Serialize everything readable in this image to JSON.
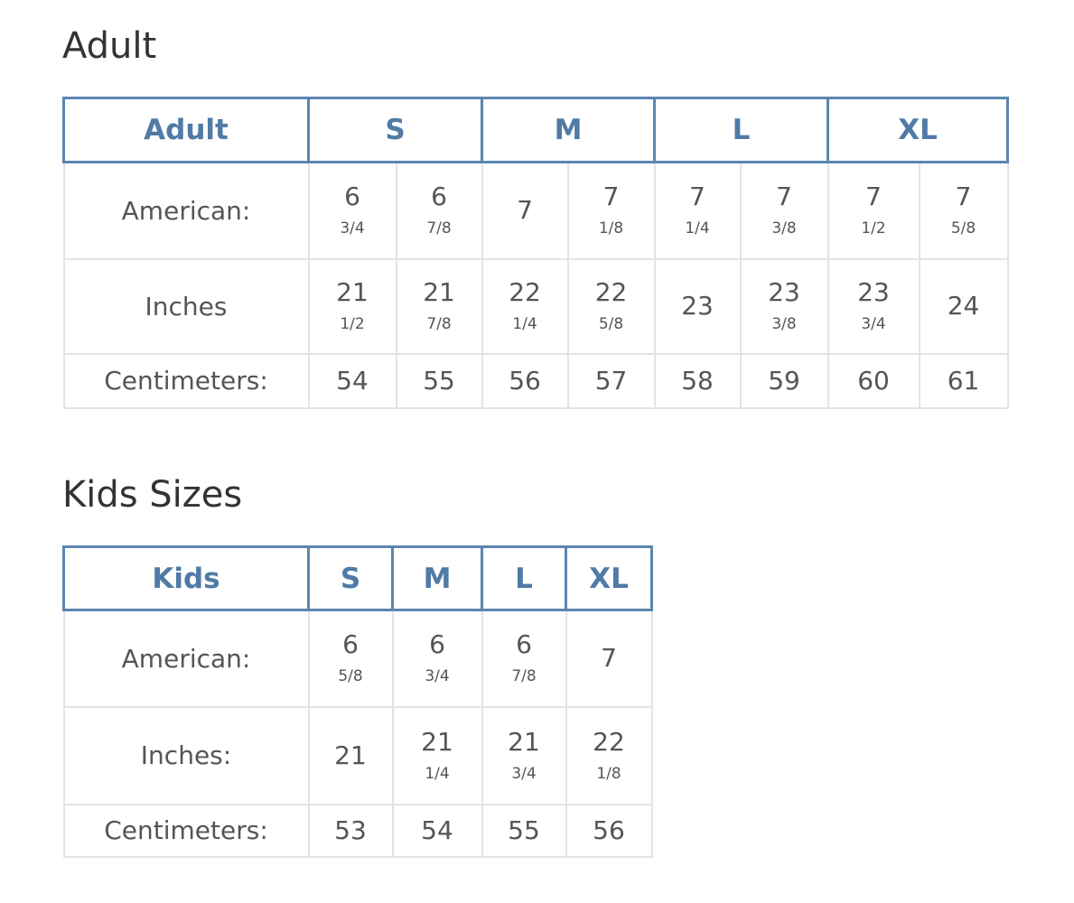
{
  "adult": {
    "title": "Adult",
    "header": [
      "Adult",
      "S",
      "M",
      "L",
      "XL"
    ],
    "rows": [
      {
        "label": "American:",
        "cells": [
          {
            "whole": "6",
            "frac": "3/4"
          },
          {
            "whole": "6",
            "frac": "7/8"
          },
          {
            "whole": "7",
            "frac": ""
          },
          {
            "whole": "7",
            "frac": "1/8"
          },
          {
            "whole": "7",
            "frac": "1/4"
          },
          {
            "whole": "7",
            "frac": "3/8"
          },
          {
            "whole": "7",
            "frac": "1/2"
          },
          {
            "whole": "7",
            "frac": "5/8"
          }
        ]
      },
      {
        "label": "Inches",
        "cells": [
          {
            "whole": "21",
            "frac": "1/2"
          },
          {
            "whole": "21",
            "frac": "7/8"
          },
          {
            "whole": "22",
            "frac": "1/4"
          },
          {
            "whole": "22",
            "frac": "5/8"
          },
          {
            "whole": "23",
            "frac": ""
          },
          {
            "whole": "23",
            "frac": "3/8"
          },
          {
            "whole": "23",
            "frac": "3/4"
          },
          {
            "whole": "24",
            "frac": ""
          }
        ]
      },
      {
        "label": "Centimeters:",
        "cells": [
          {
            "whole": "54",
            "frac": ""
          },
          {
            "whole": "55",
            "frac": ""
          },
          {
            "whole": "56",
            "frac": ""
          },
          {
            "whole": "57",
            "frac": ""
          },
          {
            "whole": "58",
            "frac": ""
          },
          {
            "whole": "59",
            "frac": ""
          },
          {
            "whole": "60",
            "frac": ""
          },
          {
            "whole": "61",
            "frac": ""
          }
        ]
      }
    ]
  },
  "kids": {
    "title": "Kids Sizes",
    "header": [
      "Kids",
      "S",
      "M",
      "L",
      "XL"
    ],
    "rows": [
      {
        "label": "American:",
        "cells": [
          {
            "whole": "6",
            "frac": "5/8"
          },
          {
            "whole": "6",
            "frac": "3/4"
          },
          {
            "whole": "6",
            "frac": "7/8"
          },
          {
            "whole": "7",
            "frac": ""
          }
        ]
      },
      {
        "label": "Inches:",
        "cells": [
          {
            "whole": "21",
            "frac": ""
          },
          {
            "whole": "21",
            "frac": "1/4"
          },
          {
            "whole": "21",
            "frac": "3/4"
          },
          {
            "whole": "22",
            "frac": "1/8"
          }
        ]
      },
      {
        "label": "Centimeters:",
        "cells": [
          {
            "whole": "53",
            "frac": ""
          },
          {
            "whole": "54",
            "frac": ""
          },
          {
            "whole": "55",
            "frac": ""
          },
          {
            "whole": "56",
            "frac": ""
          }
        ]
      }
    ]
  },
  "colors": {
    "header_border": "#5b86b0",
    "header_text": "#4f7ba6",
    "cell_border": "#e4e4e4"
  }
}
